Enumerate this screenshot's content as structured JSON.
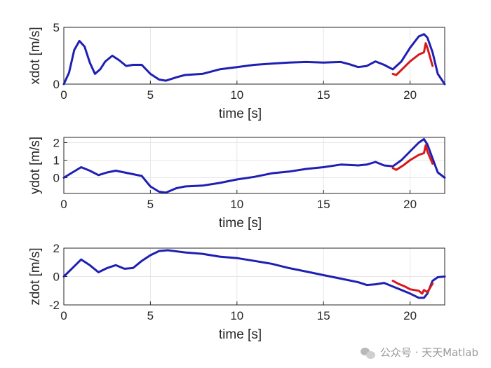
{
  "watermark": {
    "text": "公众号 · 天天Matlab",
    "logo_icon": "wechat-icon"
  },
  "colors": {
    "measured": "#d7191c",
    "reference": "#1f1fb4"
  },
  "chart_data": [
    {
      "type": "line",
      "xlabel": "time [s]",
      "ylabel": "xdot [m/s]",
      "xlim": [
        0,
        22
      ],
      "ylim": [
        0,
        5
      ],
      "xticks": [
        0,
        5,
        10,
        15,
        20
      ],
      "yticks": [
        0,
        5
      ],
      "grid": true,
      "series": [
        {
          "color": "#1f1fb4",
          "x": [
            0,
            0.3,
            0.6,
            0.9,
            1.2,
            1.5,
            1.8,
            2.1,
            2.4,
            2.8,
            3.2,
            3.6,
            4.0,
            4.5,
            5.0,
            5.5,
            5.9,
            6.5,
            7.0,
            8.0,
            9.0,
            10.0,
            11.0,
            12.0,
            13.0,
            14.0,
            15.0,
            16.0,
            16.5,
            17.0,
            17.5,
            18.0,
            18.5,
            19.0,
            19.5,
            20.0,
            20.5,
            20.8,
            21.0,
            21.3,
            21.6,
            22.0
          ],
          "y": [
            0,
            1.0,
            3.0,
            3.8,
            3.3,
            1.9,
            0.9,
            1.3,
            2.0,
            2.5,
            2.1,
            1.6,
            1.7,
            1.7,
            0.9,
            0.4,
            0.3,
            0.6,
            0.8,
            0.9,
            1.3,
            1.5,
            1.7,
            1.8,
            1.9,
            1.95,
            1.9,
            1.95,
            1.75,
            1.5,
            1.6,
            2.0,
            1.7,
            1.3,
            2.0,
            3.2,
            4.2,
            4.4,
            4.1,
            2.8,
            0.9,
            0
          ]
        },
        {
          "color": "#d7191c",
          "x": [
            19.0,
            19.2,
            19.6,
            20.0,
            20.5,
            20.8,
            20.9,
            21.0,
            21.3
          ],
          "y": [
            0.9,
            0.8,
            1.4,
            2.0,
            2.6,
            2.8,
            3.6,
            3.2,
            1.6
          ]
        }
      ]
    },
    {
      "type": "line",
      "xlabel": "time [s]",
      "ylabel": "ydot [m/s]",
      "xlim": [
        0,
        22
      ],
      "ylim": [
        -0.9,
        2.3
      ],
      "xticks": [
        0,
        5,
        10,
        15,
        20
      ],
      "yticks": [
        0,
        1,
        2
      ],
      "grid": true,
      "series": [
        {
          "color": "#1f1fb4",
          "x": [
            0,
            0.5,
            1.0,
            1.5,
            2.0,
            2.5,
            3.0,
            3.5,
            4.0,
            4.5,
            5.0,
            5.5,
            5.9,
            6.5,
            7.0,
            8.0,
            9.0,
            10.0,
            11.0,
            12.0,
            13.0,
            14.0,
            15.0,
            16.0,
            17.0,
            17.5,
            18.0,
            18.5,
            19.0,
            19.5,
            20.0,
            20.5,
            20.8,
            21.0,
            21.3,
            21.6,
            22.0
          ],
          "y": [
            0,
            0.3,
            0.6,
            0.4,
            0.15,
            0.3,
            0.4,
            0.3,
            0.2,
            0.1,
            -0.5,
            -0.8,
            -0.85,
            -0.6,
            -0.5,
            -0.45,
            -0.3,
            -0.1,
            0.05,
            0.25,
            0.35,
            0.5,
            0.6,
            0.75,
            0.7,
            0.75,
            0.9,
            0.7,
            0.65,
            1.0,
            1.5,
            2.0,
            2.2,
            1.9,
            1.1,
            0.3,
            0
          ]
        },
        {
          "color": "#d7191c",
          "x": [
            19.0,
            19.2,
            19.6,
            20.0,
            20.5,
            20.8,
            20.9,
            21.0,
            21.3
          ],
          "y": [
            0.55,
            0.45,
            0.7,
            1.0,
            1.3,
            1.4,
            1.85,
            1.5,
            0.8
          ]
        }
      ]
    },
    {
      "type": "line",
      "xlabel": "time [s]",
      "ylabel": "zdot [m/s]",
      "xlim": [
        0,
        22
      ],
      "ylim": [
        -2,
        2
      ],
      "xticks": [
        0,
        5,
        10,
        15,
        20
      ],
      "yticks": [
        -2,
        0,
        2
      ],
      "grid": true,
      "series": [
        {
          "color": "#1f1fb4",
          "x": [
            0,
            0.5,
            1.0,
            1.5,
            2.0,
            2.5,
            3.0,
            3.5,
            4.0,
            4.5,
            5.0,
            5.5,
            6.0,
            7.0,
            8.0,
            9.0,
            10.0,
            11.0,
            12.0,
            13.0,
            14.0,
            15.0,
            16.0,
            17.0,
            17.5,
            18.0,
            18.5,
            19.0,
            19.5,
            20.0,
            20.5,
            20.8,
            21.0,
            21.3,
            21.6,
            22.0
          ],
          "y": [
            0,
            0.6,
            1.2,
            0.8,
            0.3,
            0.6,
            0.8,
            0.55,
            0.6,
            1.1,
            1.5,
            1.8,
            1.85,
            1.7,
            1.6,
            1.4,
            1.3,
            1.1,
            0.9,
            0.6,
            0.35,
            0.1,
            -0.15,
            -0.4,
            -0.6,
            -0.55,
            -0.45,
            -0.7,
            -0.95,
            -1.2,
            -1.5,
            -1.5,
            -1.2,
            -0.3,
            -0.05,
            0
          ]
        },
        {
          "color": "#d7191c",
          "x": [
            19.0,
            19.3,
            19.7,
            20.0,
            20.5,
            20.7,
            20.8,
            21.0,
            21.3
          ],
          "y": [
            -0.3,
            -0.5,
            -0.7,
            -0.9,
            -1.0,
            -1.2,
            -0.95,
            -1.1,
            -0.5
          ]
        }
      ]
    }
  ]
}
